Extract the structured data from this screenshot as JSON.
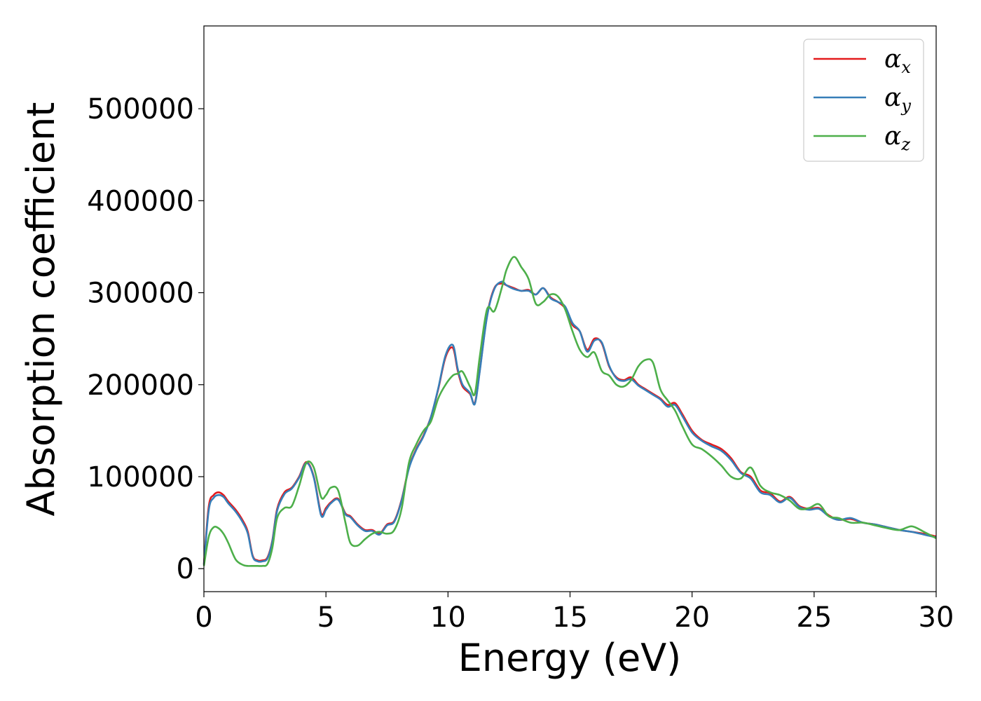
{
  "chart_data": {
    "type": "line",
    "title": "",
    "xlabel": "Energy (eV)",
    "ylabel": "Absorption coefficient",
    "xlim": [
      0,
      30
    ],
    "ylim": [
      -25000,
      590000
    ],
    "xticks": [
      0,
      5,
      10,
      15,
      20,
      25,
      30
    ],
    "yticks": [
      0,
      100000,
      200000,
      300000,
      400000,
      500000
    ],
    "grid": false,
    "legend_position": "top-right",
    "series": [
      {
        "name": "α_x",
        "symbol": "α",
        "subscript": "x",
        "color": "#e41a1c",
        "x": [
          0,
          0.2,
          0.4,
          0.6,
          0.8,
          1.0,
          1.3,
          1.6,
          1.8,
          2.0,
          2.2,
          2.4,
          2.6,
          2.8,
          3.0,
          3.3,
          3.6,
          3.9,
          4.2,
          4.5,
          4.8,
          5.0,
          5.2,
          5.5,
          5.8,
          6.0,
          6.3,
          6.6,
          6.9,
          7.2,
          7.5,
          7.8,
          8.1,
          8.4,
          8.7,
          9.0,
          9.3,
          9.6,
          9.9,
          10.2,
          10.4,
          10.6,
          10.9,
          11.1,
          11.3,
          11.6,
          11.9,
          12.2,
          12.4,
          12.7,
          13.0,
          13.3,
          13.6,
          13.9,
          14.2,
          14.5,
          14.8,
          15.1,
          15.4,
          15.7,
          16.0,
          16.3,
          16.6,
          16.9,
          17.2,
          17.5,
          17.8,
          18.1,
          18.4,
          18.7,
          19.0,
          19.3,
          19.6,
          20.0,
          20.4,
          20.8,
          21.2,
          21.6,
          22.0,
          22.4,
          22.8,
          23.2,
          23.6,
          24.0,
          24.4,
          24.8,
          25.2,
          25.6,
          26.0,
          26.5,
          27.0,
          27.5,
          28.0,
          28.5,
          29.0,
          29.5,
          30.0
        ],
        "values": [
          5000,
          68000,
          80000,
          83000,
          80000,
          73000,
          64000,
          52000,
          40000,
          14000,
          9000,
          9000,
          12000,
          30000,
          65000,
          83000,
          88000,
          100000,
          116000,
          100000,
          60000,
          66000,
          72000,
          76000,
          60000,
          57000,
          48000,
          42000,
          42000,
          38000,
          48000,
          52000,
          75000,
          110000,
          130000,
          145000,
          165000,
          195000,
          230000,
          240000,
          215000,
          198000,
          190000,
          180000,
          215000,
          275000,
          305000,
          310000,
          308000,
          305000,
          302000,
          303000,
          298000,
          305000,
          295000,
          290000,
          283000,
          265000,
          258000,
          238000,
          250000,
          245000,
          220000,
          208000,
          205000,
          208000,
          200000,
          195000,
          190000,
          185000,
          178000,
          180000,
          168000,
          150000,
          140000,
          135000,
          130000,
          120000,
          105000,
          100000,
          85000,
          82000,
          73000,
          78000,
          68000,
          65000,
          66000,
          58000,
          53000,
          54000,
          50000,
          48000,
          45000,
          42000,
          40000,
          38000,
          35000
        ]
      },
      {
        "name": "α_y",
        "symbol": "α",
        "subscript": "y",
        "color": "#377eb8",
        "x": [
          0,
          0.2,
          0.4,
          0.6,
          0.8,
          1.0,
          1.3,
          1.6,
          1.8,
          2.0,
          2.2,
          2.4,
          2.6,
          2.8,
          3.0,
          3.3,
          3.6,
          3.9,
          4.2,
          4.5,
          4.8,
          5.0,
          5.2,
          5.5,
          5.8,
          6.0,
          6.3,
          6.6,
          6.9,
          7.2,
          7.5,
          7.8,
          8.1,
          8.4,
          8.7,
          9.0,
          9.3,
          9.6,
          9.9,
          10.2,
          10.4,
          10.6,
          10.9,
          11.1,
          11.3,
          11.6,
          11.9,
          12.2,
          12.4,
          12.7,
          13.0,
          13.3,
          13.6,
          13.9,
          14.2,
          14.5,
          14.8,
          15.1,
          15.4,
          15.7,
          16.0,
          16.3,
          16.6,
          16.9,
          17.2,
          17.5,
          17.8,
          18.1,
          18.4,
          18.7,
          19.0,
          19.3,
          19.6,
          20.0,
          20.4,
          20.8,
          21.2,
          21.6,
          22.0,
          22.4,
          22.8,
          23.2,
          23.6,
          24.0,
          24.4,
          24.8,
          25.2,
          25.6,
          26.0,
          26.5,
          27.0,
          27.5,
          28.0,
          28.5,
          29.0,
          29.5,
          30.0
        ],
        "values": [
          4000,
          64000,
          77000,
          80000,
          78000,
          71000,
          62000,
          50000,
          38000,
          13000,
          8000,
          8000,
          11000,
          29000,
          63000,
          81000,
          87000,
          99000,
          115000,
          99000,
          58000,
          64000,
          71000,
          75000,
          59000,
          56000,
          47000,
          41000,
          41000,
          37000,
          47000,
          51000,
          74000,
          109000,
          129000,
          144000,
          165000,
          196000,
          232000,
          243000,
          217000,
          200000,
          191000,
          179000,
          214000,
          274000,
          304000,
          312000,
          308000,
          304000,
          302000,
          302000,
          298000,
          305000,
          294000,
          290000,
          285000,
          267000,
          258000,
          236000,
          248000,
          246000,
          221000,
          207000,
          204000,
          206000,
          199000,
          194000,
          189000,
          184000,
          176000,
          178000,
          166000,
          148000,
          139000,
          133000,
          128000,
          118000,
          104000,
          98000,
          83000,
          80000,
          72000,
          77000,
          67000,
          64000,
          65000,
          57000,
          53000,
          55000,
          50000,
          48000,
          45000,
          42000,
          40000,
          37000,
          34000
        ]
      },
      {
        "name": "α_z",
        "symbol": "α",
        "subscript": "z",
        "color": "#4daf4a",
        "x": [
          0,
          0.2,
          0.4,
          0.6,
          0.8,
          1.0,
          1.3,
          1.6,
          1.8,
          2.0,
          2.2,
          2.4,
          2.6,
          2.8,
          3.0,
          3.3,
          3.6,
          3.9,
          4.2,
          4.5,
          4.8,
          5.0,
          5.2,
          5.5,
          5.8,
          6.0,
          6.3,
          6.6,
          6.9,
          7.2,
          7.5,
          7.8,
          8.1,
          8.4,
          8.7,
          9.0,
          9.3,
          9.6,
          9.9,
          10.2,
          10.4,
          10.6,
          10.9,
          11.1,
          11.3,
          11.6,
          11.9,
          12.2,
          12.4,
          12.7,
          13.0,
          13.3,
          13.6,
          13.9,
          14.2,
          14.5,
          14.8,
          15.1,
          15.4,
          15.7,
          16.0,
          16.3,
          16.6,
          16.9,
          17.2,
          17.5,
          17.8,
          18.1,
          18.4,
          18.7,
          19.0,
          19.3,
          19.6,
          20.0,
          20.4,
          20.8,
          21.2,
          21.6,
          22.0,
          22.4,
          22.8,
          23.2,
          23.6,
          24.0,
          24.4,
          24.8,
          25.2,
          25.6,
          26.0,
          26.5,
          27.0,
          27.5,
          28.0,
          28.5,
          29.0,
          29.5,
          30.0
        ],
        "values": [
          3000,
          35000,
          45000,
          44000,
          38000,
          28000,
          10000,
          4000,
          3000,
          3000,
          3000,
          3000,
          5000,
          22000,
          55000,
          66000,
          68000,
          90000,
          115000,
          110000,
          78000,
          80000,
          88000,
          85000,
          50000,
          28000,
          25000,
          32000,
          38000,
          40000,
          38000,
          42000,
          65000,
          115000,
          135000,
          150000,
          160000,
          185000,
          200000,
          210000,
          212000,
          214000,
          198000,
          190000,
          230000,
          282000,
          280000,
          305000,
          325000,
          339000,
          328000,
          315000,
          288000,
          290000,
          298000,
          296000,
          282000,
          258000,
          238000,
          230000,
          235000,
          215000,
          210000,
          200000,
          198000,
          205000,
          220000,
          227000,
          224000,
          195000,
          183000,
          172000,
          155000,
          135000,
          130000,
          122000,
          112000,
          100000,
          98000,
          110000,
          90000,
          83000,
          80000,
          74000,
          65000,
          66000,
          70000,
          57000,
          55000,
          50000,
          50000,
          47000,
          44000,
          42000,
          46000,
          40000,
          33000
        ]
      }
    ]
  }
}
